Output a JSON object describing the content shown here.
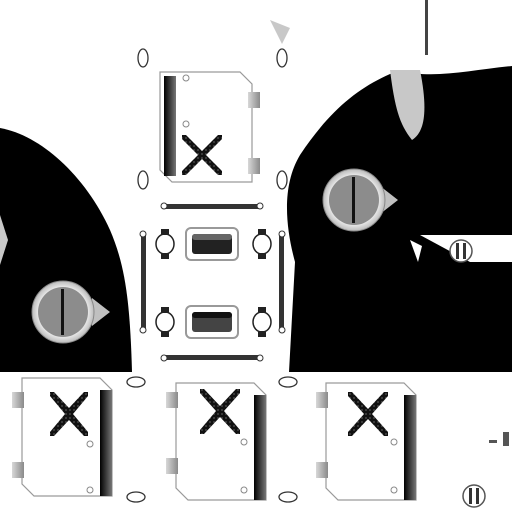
{
  "texture": {
    "background": "#ffffff",
    "ink": "#000000",
    "panel_fill": "#ffffff",
    "panel_edge": "#9a9a9a",
    "grey_mid": "#8c8c8c",
    "grey_light": "#c8c8c8",
    "grey_dark": "#3a3a3a"
  },
  "parts": {
    "panels": [
      "panel-top",
      "panel-bottom-left",
      "panel-bottom-middle",
      "panel-bottom-right"
    ],
    "eyes": [
      "eye-left",
      "eye-right"
    ],
    "screws": [
      "screw-right-upper",
      "screw-right-lower"
    ],
    "center_bracket": "center-bracket"
  }
}
